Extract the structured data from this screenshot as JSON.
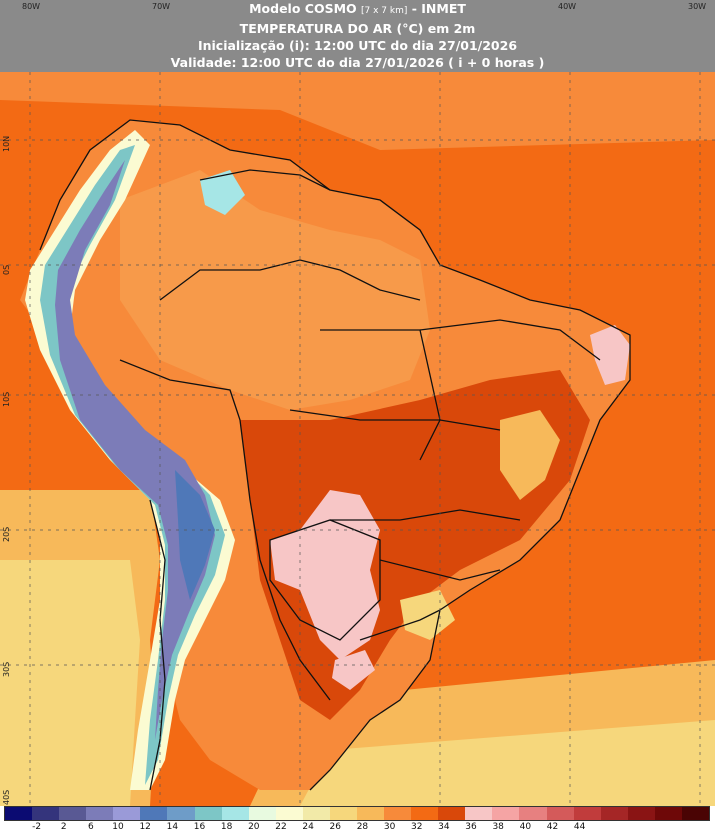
{
  "header": {
    "title_model": "Modelo COSMO",
    "title_resolution": "[7 x 7 km]",
    "title_org": "- INMET",
    "variable": "TEMPERATURA DO AR (°C) em 2m",
    "init": "Inicialização (i): 12:00 UTC do dia 27/01/2026",
    "valid": "Validade: 12:00 UTC do dia 27/01/2026 ( i + 0 horas )"
  },
  "axes": {
    "lon_labels": [
      "80W",
      "70W",
      "40W",
      "30W"
    ],
    "lat_labels": [
      "10N",
      "0S",
      "10S",
      "20S",
      "30S",
      "40S"
    ]
  },
  "legend": {
    "labels": [
      "-2",
      "2",
      "6",
      "10",
      "12",
      "14",
      "16",
      "18",
      "20",
      "22",
      "24",
      "26",
      "28",
      "30",
      "32",
      "34",
      "36",
      "38",
      "40",
      "42",
      "44"
    ],
    "colors": [
      "#0b0b72",
      "#34347c",
      "#595994",
      "#7c7cb8",
      "#9a9ad8",
      "#4f78b8",
      "#6e9cc8",
      "#7dc6c6",
      "#a6e6e6",
      "#e8fae0",
      "#fbfbd2",
      "#f2eaa8",
      "#f6d77c",
      "#f7b95a",
      "#f78a3a",
      "#f36a14",
      "#d9480a",
      "#f7c6c6",
      "#f5a4a4",
      "#e78080",
      "#d45a5a",
      "#c13c3c",
      "#a52626",
      "#8a1414",
      "#6e0808",
      "#4a0404"
    ]
  },
  "map": {
    "background_color": "#f36a14",
    "boundary_color": "#111111"
  }
}
